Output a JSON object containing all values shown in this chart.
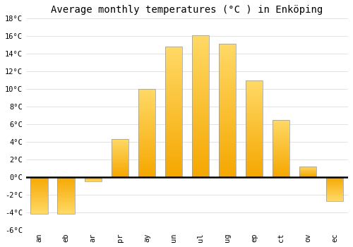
{
  "months": [
    "an",
    "eb",
    "ar",
    "pr",
    "ay",
    "un",
    "ul",
    "ug",
    "ep",
    "ct",
    "ov",
    "ec"
  ],
  "values": [
    -4.2,
    -4.2,
    -0.5,
    4.3,
    10.0,
    14.8,
    16.1,
    15.1,
    11.0,
    6.5,
    1.2,
    -2.7
  ],
  "bar_color_dark": "#F5A700",
  "bar_color_light": "#FFD966",
  "bar_edge_color": "#999999",
  "title": "Average monthly temperatures (°C ) in Enköping",
  "title_fontsize": 10,
  "ylim": [
    -6,
    18
  ],
  "yticks": [
    -6,
    -4,
    -2,
    0,
    2,
    4,
    6,
    8,
    10,
    12,
    14,
    16,
    18
  ],
  "ytick_labels": [
    "-6°C",
    "-4°C",
    "-2°C",
    "0°C",
    "2°C",
    "4°C",
    "6°C",
    "8°C",
    "10°C",
    "12°C",
    "14°C",
    "16°C",
    "18°C"
  ],
  "background_color": "#ffffff",
  "grid_color": "#dddddd",
  "tick_fontsize": 7.5,
  "font_family": "monospace",
  "bar_width": 0.65
}
